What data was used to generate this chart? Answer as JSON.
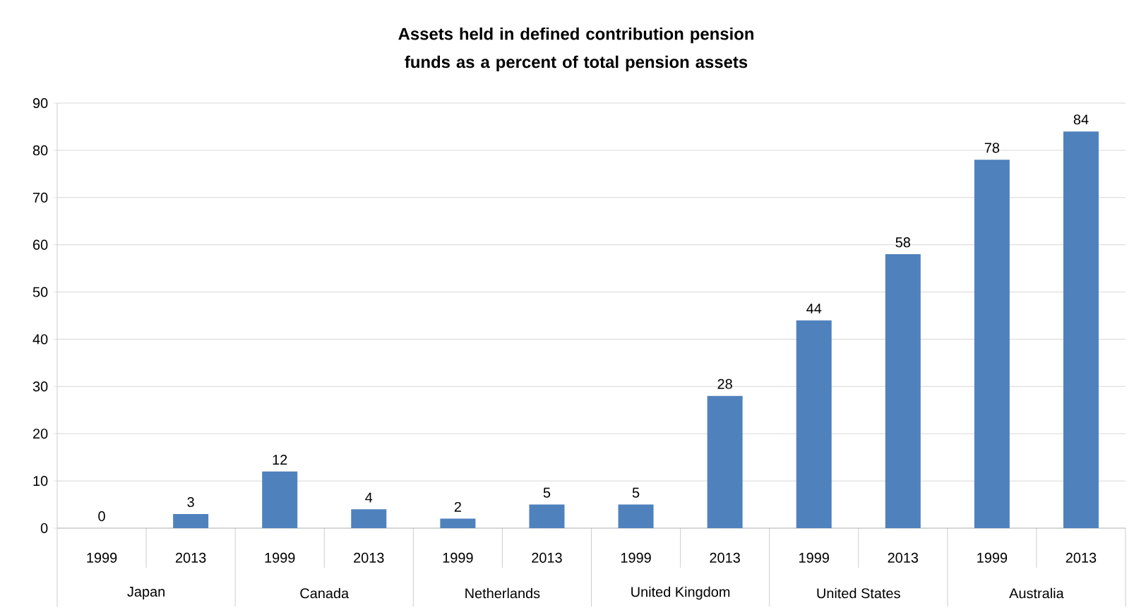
{
  "chart_data": {
    "type": "bar",
    "title": "Assets held in defined contribution pension funds as a percent of total pension assets",
    "categories": [
      "1999",
      "2013",
      "1999",
      "2013",
      "1999",
      "2013",
      "1999",
      "2013",
      "1999",
      "2013",
      "1999",
      "2013"
    ],
    "values": [
      0,
      3,
      12,
      4,
      2,
      5,
      5,
      28,
      44,
      58,
      78,
      84
    ],
    "color": "#4f81bd",
    "annotations": [
      "Japan",
      "Canada",
      "Netherlands",
      "United Kingdom",
      "United States",
      "Australia"
    ],
    "ylim": [
      0,
      90
    ],
    "yticks": [
      0,
      10,
      20,
      30,
      40,
      50,
      60,
      70,
      80,
      90
    ],
    "grid": "y",
    "data_labels": true
  }
}
